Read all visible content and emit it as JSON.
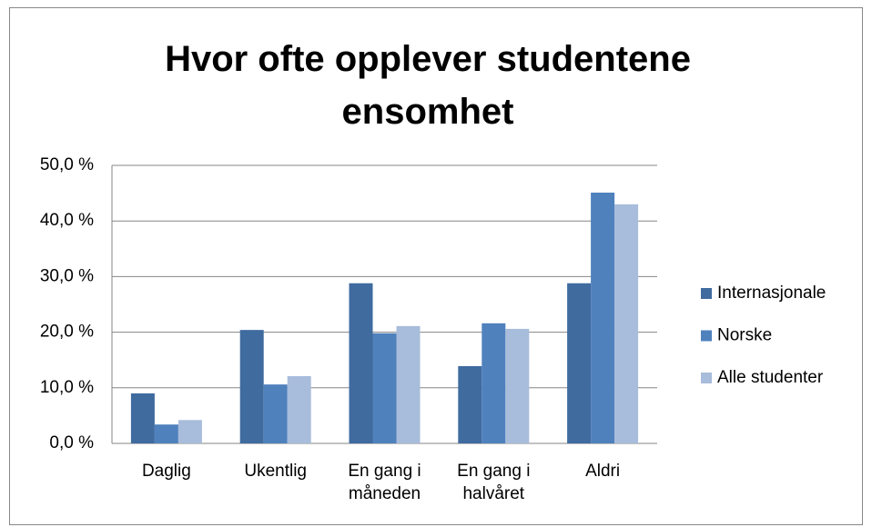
{
  "chart_data": {
    "type": "bar",
    "title": "Hvor ofte opplever studentene ensomhet",
    "categories": [
      "Daglig",
      "Ukentlig",
      "En gang i måneden",
      "En gang i halvåret",
      "Aldri"
    ],
    "series": [
      {
        "name": "Internasjonale",
        "color": "#3f6b9f",
        "values": [
          9.0,
          20.4,
          28.8,
          13.9,
          28.8
        ]
      },
      {
        "name": "Norske",
        "color": "#4f81bd",
        "values": [
          3.4,
          10.6,
          19.8,
          21.6,
          45.1
        ]
      },
      {
        "name": "Alle studenter",
        "color": "#a8bcdb",
        "values": [
          4.2,
          12.1,
          21.1,
          20.6,
          43.0
        ]
      }
    ],
    "ylim": [
      0,
      50
    ],
    "yticks": [
      {
        "value": 0,
        "label": "0,0 %"
      },
      {
        "value": 10,
        "label": "10,0 %"
      },
      {
        "value": 20,
        "label": "20,0 %"
      },
      {
        "value": 30,
        "label": "30,0 %"
      },
      {
        "value": 40,
        "label": "40,0 %"
      },
      {
        "value": 50,
        "label": "50,0 %"
      }
    ],
    "grid": true,
    "legend": "right"
  }
}
